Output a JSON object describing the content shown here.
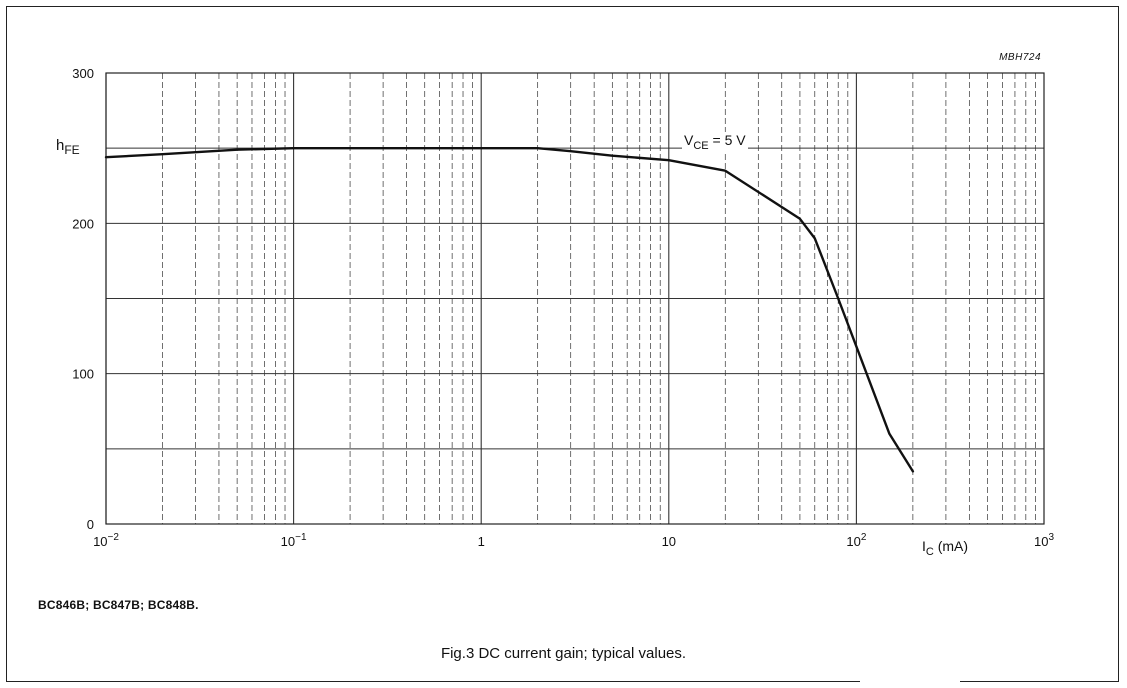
{
  "figure": {
    "code": "MBH724",
    "product_line": "BC846B; BC847B; BC848B.",
    "caption": "Fig.3  DC current gain; typical values."
  },
  "chart_data": {
    "type": "line",
    "x_scale": "log",
    "xlim": [
      0.01,
      1000
    ],
    "ylim": [
      0,
      300
    ],
    "x_ticks": [
      {
        "base": "10",
        "exp": "−2"
      },
      {
        "base": "10",
        "exp": "−1"
      },
      {
        "base": "1",
        "exp": ""
      },
      {
        "base": "10",
        "exp": ""
      },
      {
        "base": "10",
        "exp": "2"
      },
      {
        "base": "10",
        "exp": "3"
      }
    ],
    "y_ticks": [
      {
        "value": 0,
        "label": "0"
      },
      {
        "value": 100,
        "label": "100"
      },
      {
        "value": 200,
        "label": "200"
      },
      {
        "value": 300,
        "label": "300"
      }
    ],
    "y_gridlines": [
      0,
      50,
      100,
      150,
      200,
      250,
      300
    ],
    "ylabel": {
      "main": "h",
      "sub": "FE"
    },
    "xlabel": {
      "main": "I",
      "sub": "C",
      "unit": " (mA)"
    },
    "annotation": {
      "main": "V",
      "sub": "CE",
      "rest": " = 5 V"
    },
    "grid": true,
    "series": [
      {
        "x": [
          0.01,
          0.02,
          0.05,
          0.1,
          0.2,
          0.5,
          1,
          2,
          3,
          5,
          10,
          20,
          50,
          60,
          80,
          100,
          150,
          200
        ],
        "y": [
          244,
          246,
          249,
          250,
          250,
          250,
          250,
          250,
          248,
          245,
          242,
          235,
          203,
          190,
          150,
          118,
          60,
          35
        ]
      }
    ]
  }
}
